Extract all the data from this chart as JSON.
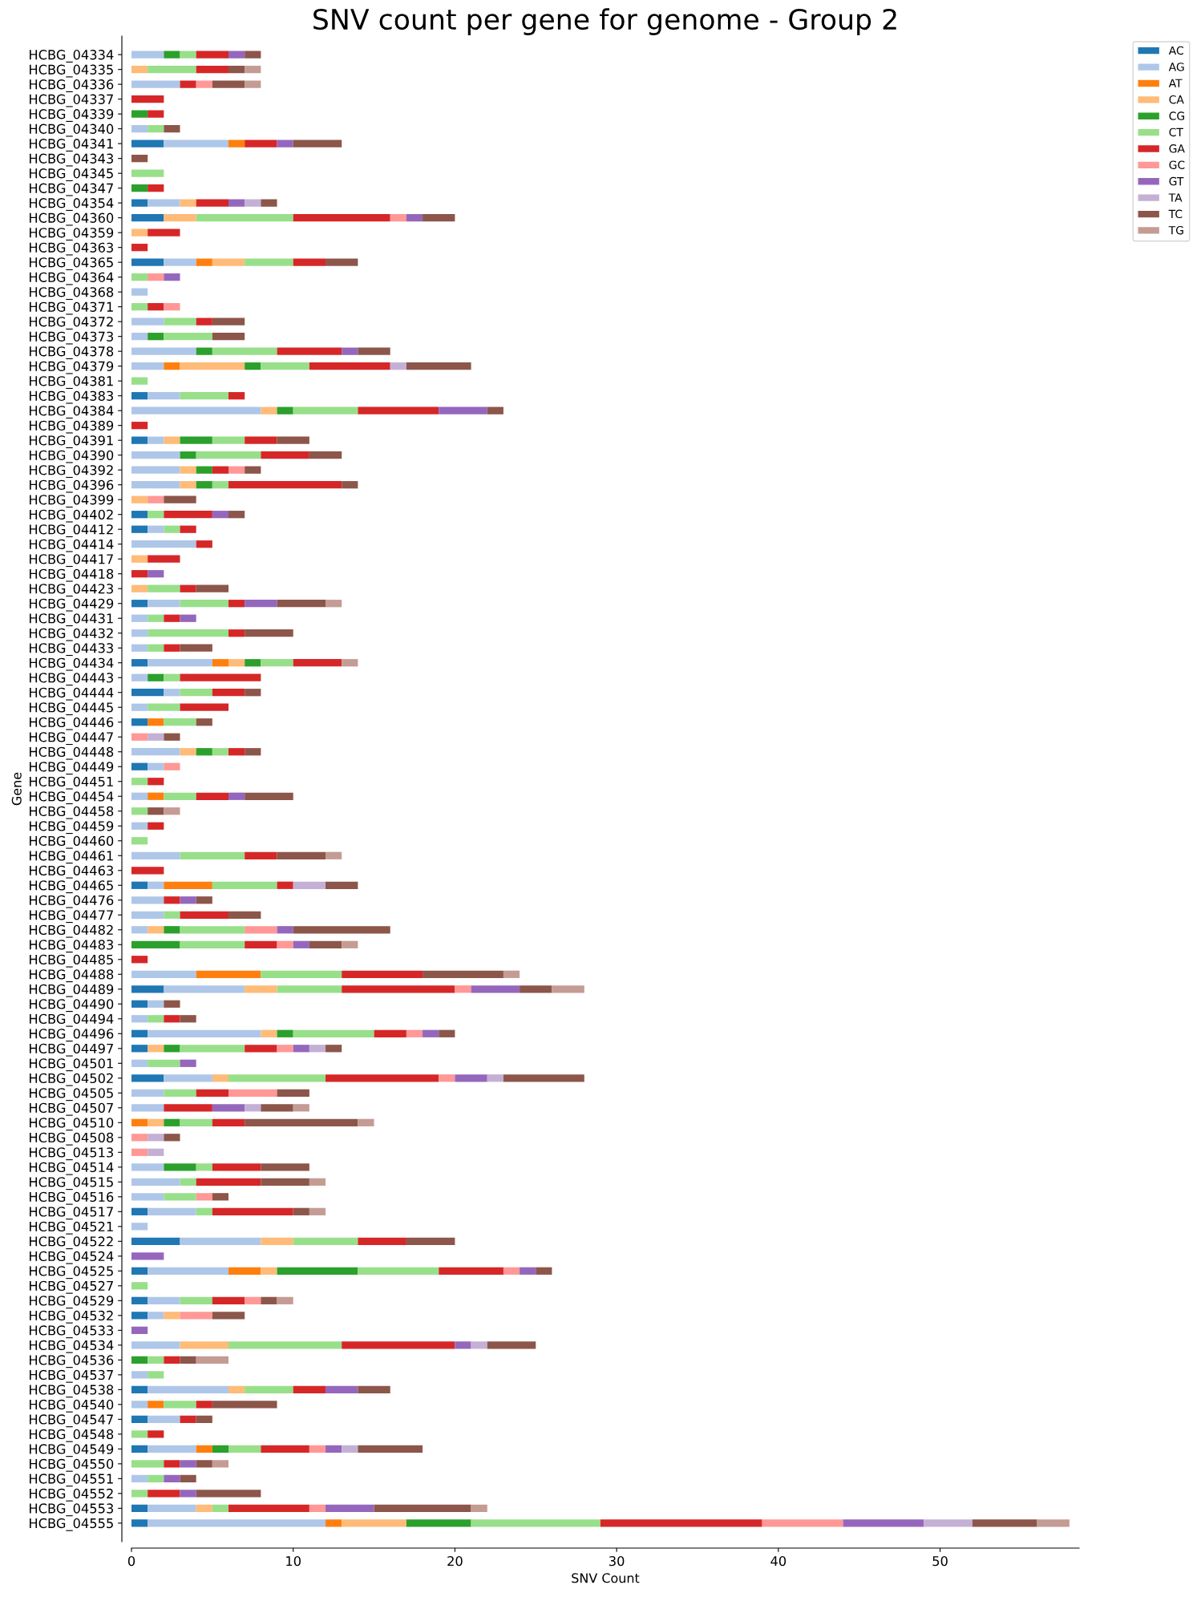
{
  "chart_data": {
    "type": "bar",
    "orientation": "horizontal",
    "stacked": true,
    "title": "SNV count per gene for genome - Group 2",
    "xlabel": "SNV Count",
    "ylabel": "Gene",
    "categories": [
      "HCBG_04334",
      "HCBG_04335",
      "HCBG_04336",
      "HCBG_04337",
      "HCBG_04339",
      "HCBG_04340",
      "HCBG_04341",
      "HCBG_04343",
      "HCBG_04345",
      "HCBG_04347",
      "HCBG_04354",
      "HCBG_04360",
      "HCBG_04359",
      "HCBG_04363",
      "HCBG_04365",
      "HCBG_04364",
      "HCBG_04368",
      "HCBG_04371",
      "HCBG_04372",
      "HCBG_04373",
      "HCBG_04378",
      "HCBG_04379",
      "HCBG_04381",
      "HCBG_04383",
      "HCBG_04384",
      "HCBG_04389",
      "HCBG_04391",
      "HCBG_04390",
      "HCBG_04392",
      "HCBG_04396",
      "HCBG_04399",
      "HCBG_04402",
      "HCBG_04412",
      "HCBG_04414",
      "HCBG_04417",
      "HCBG_04418",
      "HCBG_04423",
      "HCBG_04429",
      "HCBG_04431",
      "HCBG_04432",
      "HCBG_04433",
      "HCBG_04434",
      "HCBG_04443",
      "HCBG_04444",
      "HCBG_04445",
      "HCBG_04446",
      "HCBG_04447",
      "HCBG_04448",
      "HCBG_04449",
      "HCBG_04451",
      "HCBG_04454",
      "HCBG_04458",
      "HCBG_04459",
      "HCBG_04460",
      "HCBG_04461",
      "HCBG_04463",
      "HCBG_04465",
      "HCBG_04476",
      "HCBG_04477",
      "HCBG_04482",
      "HCBG_04483",
      "HCBG_04485",
      "HCBG_04488",
      "HCBG_04489",
      "HCBG_04490",
      "HCBG_04494",
      "HCBG_04496",
      "HCBG_04497",
      "HCBG_04501",
      "HCBG_04502",
      "HCBG_04505",
      "HCBG_04507",
      "HCBG_04510",
      "HCBG_04508",
      "HCBG_04513",
      "HCBG_04514",
      "HCBG_04515",
      "HCBG_04516",
      "HCBG_04517",
      "HCBG_04521",
      "HCBG_04522",
      "HCBG_04524",
      "HCBG_04525",
      "HCBG_04527",
      "HCBG_04529",
      "HCBG_04532",
      "HCBG_04533",
      "HCBG_04534",
      "HCBG_04536",
      "HCBG_04537",
      "HCBG_04538",
      "HCBG_04540",
      "HCBG_04547",
      "HCBG_04548",
      "HCBG_04549",
      "HCBG_04550",
      "HCBG_04551",
      "HCBG_04552",
      "HCBG_04553",
      "HCBG_04555"
    ],
    "series": [
      {
        "name": "AC",
        "color": "#1f77b4",
        "values": [
          null,
          null,
          null,
          null,
          null,
          null,
          2,
          null,
          null,
          null,
          1,
          2,
          null,
          null,
          2,
          null,
          null,
          null,
          null,
          null,
          null,
          null,
          null,
          1,
          null,
          null,
          1,
          null,
          null,
          null,
          null,
          1,
          1,
          null,
          null,
          null,
          null,
          1,
          null,
          null,
          null,
          1,
          null,
          2,
          null,
          1,
          null,
          null,
          1,
          null,
          null,
          null,
          null,
          null,
          null,
          null,
          1,
          null,
          null,
          null,
          null,
          null,
          null,
          2,
          1,
          null,
          1,
          1,
          null,
          2,
          null,
          null,
          null,
          null,
          null,
          null,
          null,
          null,
          1,
          null,
          3,
          null,
          1,
          null,
          1,
          1,
          null,
          null,
          null,
          null,
          1,
          null,
          1,
          null,
          1,
          null,
          null,
          null,
          1,
          1
        ]
      },
      {
        "name": "AG",
        "color": "#aec7e8",
        "values": [
          2,
          null,
          3,
          null,
          null,
          1,
          4,
          null,
          null,
          null,
          2,
          null,
          null,
          null,
          2,
          null,
          1,
          null,
          2,
          1,
          4,
          2,
          null,
          2,
          8,
          null,
          1,
          3,
          3,
          3,
          null,
          null,
          1,
          4,
          null,
          null,
          null,
          2,
          1,
          1,
          1,
          4,
          1,
          1,
          1,
          null,
          null,
          3,
          1,
          null,
          1,
          null,
          1,
          null,
          3,
          null,
          1,
          2,
          2,
          1,
          null,
          null,
          4,
          5,
          1,
          1,
          7,
          null,
          1,
          3,
          2,
          2,
          null,
          null,
          null,
          2,
          3,
          2,
          3,
          1,
          5,
          null,
          5,
          null,
          2,
          1,
          null,
          3,
          null,
          1,
          5,
          1,
          2,
          null,
          3,
          null,
          1,
          null,
          3,
          11
        ]
      },
      {
        "name": "AT",
        "color": "#ff7f0e",
        "values": [
          null,
          null,
          null,
          null,
          null,
          null,
          1,
          null,
          null,
          null,
          null,
          null,
          null,
          null,
          1,
          null,
          null,
          null,
          null,
          null,
          null,
          1,
          null,
          null,
          null,
          null,
          null,
          null,
          null,
          null,
          null,
          null,
          null,
          null,
          null,
          null,
          null,
          null,
          null,
          null,
          null,
          1,
          null,
          null,
          null,
          1,
          null,
          null,
          null,
          null,
          1,
          null,
          null,
          null,
          null,
          null,
          3,
          null,
          null,
          null,
          null,
          null,
          4,
          null,
          null,
          null,
          null,
          null,
          null,
          null,
          null,
          null,
          1,
          null,
          null,
          null,
          null,
          null,
          null,
          null,
          null,
          null,
          2,
          null,
          null,
          null,
          null,
          null,
          null,
          null,
          null,
          1,
          null,
          null,
          1,
          null,
          null,
          null,
          null,
          1
        ]
      },
      {
        "name": "CA",
        "color": "#ffbb78",
        "values": [
          null,
          1,
          null,
          null,
          null,
          null,
          null,
          null,
          null,
          null,
          1,
          2,
          1,
          null,
          2,
          null,
          null,
          null,
          null,
          null,
          null,
          4,
          null,
          null,
          1,
          null,
          1,
          null,
          1,
          1,
          1,
          null,
          null,
          null,
          1,
          null,
          1,
          null,
          null,
          null,
          null,
          1,
          null,
          null,
          null,
          null,
          null,
          1,
          null,
          null,
          null,
          null,
          null,
          null,
          null,
          null,
          null,
          null,
          null,
          1,
          null,
          null,
          null,
          2,
          null,
          null,
          1,
          1,
          null,
          1,
          null,
          null,
          1,
          null,
          null,
          null,
          null,
          null,
          null,
          null,
          2,
          null,
          1,
          null,
          null,
          1,
          null,
          3,
          null,
          null,
          1,
          null,
          null,
          null,
          null,
          null,
          null,
          null,
          1,
          4
        ]
      },
      {
        "name": "CG",
        "color": "#2ca02c",
        "values": [
          1,
          null,
          null,
          null,
          1,
          null,
          null,
          null,
          null,
          1,
          null,
          null,
          null,
          null,
          null,
          null,
          null,
          null,
          null,
          1,
          1,
          1,
          null,
          null,
          1,
          null,
          2,
          1,
          1,
          1,
          null,
          null,
          null,
          null,
          null,
          null,
          null,
          null,
          null,
          null,
          null,
          1,
          1,
          null,
          null,
          null,
          null,
          1,
          null,
          null,
          null,
          null,
          null,
          null,
          null,
          null,
          null,
          null,
          null,
          1,
          3,
          null,
          null,
          null,
          null,
          null,
          1,
          1,
          null,
          null,
          null,
          null,
          1,
          null,
          null,
          2,
          null,
          null,
          null,
          null,
          null,
          null,
          5,
          null,
          null,
          null,
          null,
          null,
          1,
          null,
          null,
          null,
          null,
          null,
          1,
          null,
          null,
          null,
          null,
          4
        ]
      },
      {
        "name": "CT",
        "color": "#98df8a",
        "values": [
          1,
          3,
          null,
          null,
          null,
          1,
          null,
          null,
          2,
          null,
          null,
          6,
          null,
          null,
          3,
          1,
          null,
          1,
          2,
          3,
          4,
          3,
          1,
          3,
          4,
          null,
          2,
          4,
          null,
          1,
          null,
          1,
          1,
          null,
          null,
          null,
          2,
          3,
          1,
          5,
          1,
          2,
          1,
          2,
          2,
          2,
          null,
          1,
          null,
          1,
          2,
          1,
          null,
          1,
          4,
          null,
          4,
          null,
          1,
          4,
          4,
          null,
          5,
          4,
          null,
          1,
          5,
          4,
          2,
          6,
          2,
          null,
          2,
          null,
          null,
          1,
          1,
          2,
          1,
          null,
          4,
          null,
          5,
          1,
          2,
          null,
          null,
          7,
          1,
          1,
          3,
          2,
          null,
          1,
          2,
          2,
          1,
          1,
          1,
          8
        ]
      },
      {
        "name": "GA",
        "color": "#d62728",
        "values": [
          2,
          2,
          1,
          2,
          1,
          null,
          2,
          null,
          null,
          1,
          2,
          6,
          2,
          1,
          2,
          null,
          null,
          1,
          1,
          null,
          4,
          5,
          null,
          1,
          5,
          1,
          2,
          3,
          1,
          7,
          null,
          3,
          1,
          1,
          2,
          1,
          1,
          1,
          1,
          1,
          1,
          3,
          5,
          2,
          3,
          null,
          null,
          1,
          null,
          1,
          2,
          null,
          1,
          null,
          2,
          2,
          1,
          1,
          3,
          null,
          2,
          1,
          5,
          7,
          null,
          1,
          2,
          2,
          null,
          7,
          2,
          3,
          2,
          null,
          null,
          3,
          4,
          null,
          5,
          null,
          3,
          null,
          4,
          null,
          2,
          null,
          null,
          7,
          1,
          null,
          2,
          1,
          1,
          1,
          3,
          1,
          null,
          2,
          5,
          10
        ]
      },
      {
        "name": "GC",
        "color": "#ff9896",
        "values": [
          null,
          null,
          1,
          null,
          null,
          null,
          null,
          null,
          null,
          null,
          null,
          1,
          null,
          null,
          null,
          1,
          null,
          1,
          null,
          null,
          null,
          null,
          null,
          null,
          null,
          null,
          null,
          null,
          1,
          null,
          1,
          null,
          null,
          null,
          null,
          null,
          null,
          null,
          null,
          null,
          null,
          null,
          null,
          null,
          null,
          null,
          1,
          null,
          1,
          null,
          null,
          null,
          null,
          null,
          null,
          null,
          null,
          null,
          null,
          2,
          1,
          null,
          null,
          1,
          null,
          null,
          1,
          1,
          null,
          1,
          3,
          null,
          null,
          1,
          1,
          null,
          null,
          1,
          null,
          null,
          null,
          null,
          1,
          null,
          1,
          2,
          null,
          null,
          null,
          null,
          null,
          null,
          null,
          null,
          1,
          null,
          null,
          null,
          1,
          5
        ]
      },
      {
        "name": "GT",
        "color": "#9467bd",
        "values": [
          1,
          null,
          null,
          null,
          null,
          null,
          1,
          null,
          null,
          null,
          1,
          1,
          null,
          null,
          null,
          1,
          null,
          null,
          null,
          null,
          1,
          null,
          null,
          null,
          3,
          null,
          null,
          null,
          null,
          null,
          null,
          1,
          null,
          null,
          null,
          1,
          null,
          2,
          1,
          null,
          null,
          null,
          null,
          null,
          null,
          null,
          null,
          null,
          null,
          null,
          1,
          null,
          null,
          null,
          null,
          null,
          null,
          1,
          null,
          1,
          1,
          null,
          null,
          3,
          null,
          null,
          1,
          1,
          1,
          2,
          null,
          2,
          null,
          null,
          null,
          null,
          null,
          null,
          null,
          null,
          null,
          2,
          1,
          null,
          null,
          null,
          1,
          1,
          null,
          null,
          2,
          null,
          null,
          null,
          1,
          1,
          1,
          1,
          3,
          5
        ]
      },
      {
        "name": "TA",
        "color": "#c5b0d5",
        "values": [
          null,
          null,
          null,
          null,
          null,
          null,
          null,
          null,
          null,
          null,
          1,
          null,
          null,
          null,
          null,
          null,
          null,
          null,
          null,
          null,
          null,
          1,
          null,
          null,
          null,
          null,
          null,
          null,
          null,
          null,
          null,
          null,
          null,
          null,
          null,
          null,
          null,
          null,
          null,
          null,
          null,
          null,
          null,
          null,
          null,
          null,
          1,
          null,
          null,
          null,
          null,
          null,
          null,
          null,
          null,
          null,
          2,
          null,
          null,
          null,
          null,
          null,
          null,
          null,
          null,
          null,
          null,
          1,
          null,
          1,
          null,
          1,
          null,
          1,
          1,
          null,
          null,
          null,
          null,
          null,
          null,
          null,
          null,
          null,
          null,
          null,
          null,
          1,
          null,
          null,
          null,
          null,
          null,
          null,
          1,
          null,
          null,
          null,
          null,
          3
        ]
      },
      {
        "name": "TC",
        "color": "#8c564b",
        "values": [
          1,
          1,
          2,
          null,
          null,
          1,
          3,
          1,
          null,
          null,
          1,
          2,
          null,
          null,
          2,
          null,
          null,
          null,
          2,
          2,
          2,
          4,
          null,
          null,
          1,
          null,
          2,
          2,
          1,
          1,
          2,
          1,
          null,
          null,
          null,
          null,
          2,
          3,
          null,
          3,
          2,
          null,
          null,
          1,
          null,
          1,
          1,
          1,
          null,
          null,
          3,
          1,
          null,
          null,
          3,
          null,
          2,
          1,
          2,
          6,
          2,
          null,
          5,
          2,
          1,
          1,
          1,
          1,
          null,
          5,
          2,
          2,
          7,
          1,
          null,
          3,
          3,
          1,
          1,
          null,
          3,
          null,
          1,
          null,
          1,
          2,
          null,
          3,
          1,
          null,
          2,
          4,
          1,
          null,
          4,
          1,
          1,
          4,
          6,
          4
        ]
      },
      {
        "name": "TG",
        "color": "#c49c94",
        "values": [
          null,
          1,
          1,
          null,
          null,
          null,
          null,
          null,
          null,
          null,
          null,
          null,
          null,
          null,
          null,
          null,
          null,
          null,
          null,
          null,
          null,
          null,
          null,
          null,
          null,
          null,
          null,
          null,
          null,
          null,
          null,
          null,
          null,
          null,
          null,
          null,
          null,
          1,
          null,
          null,
          null,
          1,
          null,
          null,
          null,
          null,
          null,
          null,
          null,
          null,
          null,
          1,
          null,
          null,
          1,
          null,
          null,
          null,
          null,
          null,
          1,
          null,
          1,
          2,
          null,
          null,
          null,
          null,
          null,
          null,
          null,
          1,
          1,
          null,
          null,
          null,
          1,
          null,
          1,
          null,
          null,
          null,
          null,
          null,
          1,
          null,
          null,
          null,
          2,
          null,
          null,
          null,
          null,
          null,
          null,
          1,
          null,
          null,
          1,
          2
        ]
      }
    ],
    "xlim": [
      0,
      58.6
    ],
    "xticks": [
      0,
      10,
      20,
      30,
      40,
      50
    ],
    "legend": "top right"
  }
}
